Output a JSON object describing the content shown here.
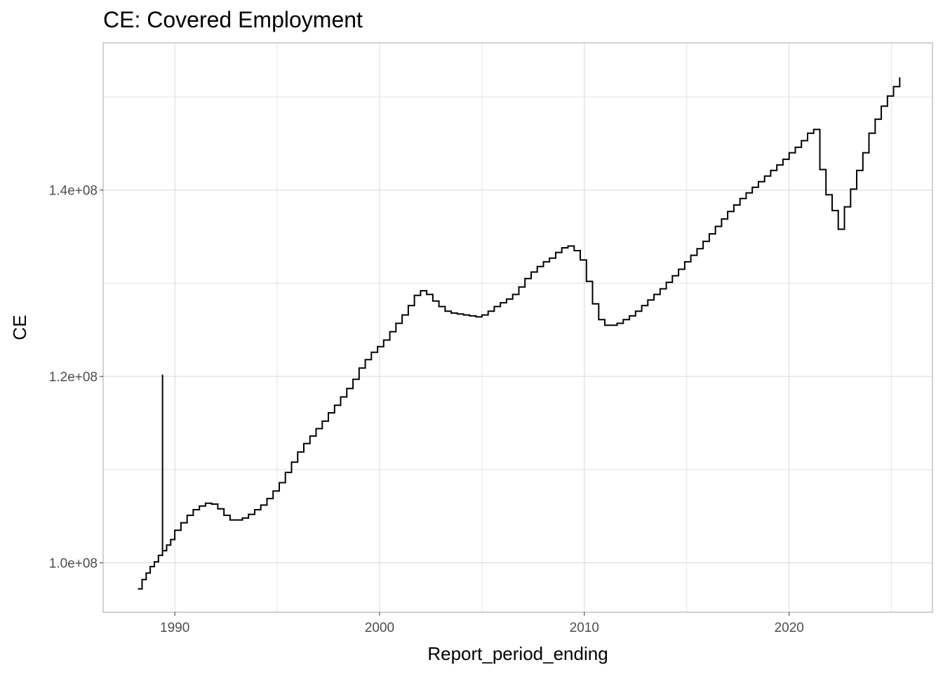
{
  "chart_data": {
    "type": "line",
    "title": "CE: Covered Employment",
    "xlabel": "Report_period_ending",
    "ylabel": "CE",
    "xlim": [
      1986.5,
      2027.0
    ],
    "ylim": [
      94700000,
      155800000
    ],
    "x_ticks": [
      {
        "value": 1990,
        "label": "1990"
      },
      {
        "value": 2000,
        "label": "2000"
      },
      {
        "value": 2010,
        "label": "2010"
      },
      {
        "value": 2020,
        "label": "2020"
      }
    ],
    "y_ticks": [
      {
        "value": 100000000,
        "label": "1.0e+08"
      },
      {
        "value": 120000000,
        "label": "1.2e+08"
      },
      {
        "value": 140000000,
        "label": "1.4e+08"
      }
    ],
    "grid": true,
    "step": true,
    "colors": {
      "line": "#000000",
      "grid": "#dedede",
      "panel_border": "#b3b3b3",
      "background": "#ffffff"
    },
    "series": [
      {
        "x": [
          1988.2,
          1988.4,
          1988.6,
          1988.8,
          1989.0,
          1989.2,
          1989.4,
          1989.6,
          1989.8,
          1990.0,
          1990.3,
          1990.6,
          1990.9,
          1991.2,
          1991.5,
          1991.8,
          1992.1,
          1992.4,
          1992.7,
          1993.0,
          1993.3,
          1993.6,
          1993.9,
          1994.2,
          1994.5,
          1994.8,
          1995.1,
          1995.4,
          1995.7,
          1996.0,
          1996.3,
          1996.6,
          1996.9,
          1997.2,
          1997.5,
          1997.8,
          1998.1,
          1998.4,
          1998.7,
          1999.0,
          1999.3,
          1999.6,
          1999.9,
          2000.2,
          2000.5,
          2000.8,
          2001.1,
          2001.4,
          2001.7,
          2002.0,
          2002.3,
          2002.6,
          2002.9,
          2003.2,
          2003.5,
          2003.8,
          2004.1,
          2004.4,
          2004.7,
          2005.0,
          2005.3,
          2005.6,
          2005.9,
          2006.2,
          2006.5,
          2006.8,
          2007.1,
          2007.4,
          2007.7,
          2008.0,
          2008.3,
          2008.6,
          2008.9,
          2009.2,
          2009.5,
          2009.8,
          2010.1,
          2010.4,
          2010.7,
          2011.0,
          2011.3,
          2011.6,
          2011.9,
          2012.2,
          2012.5,
          2012.8,
          2013.1,
          2013.4,
          2013.7,
          2014.0,
          2014.3,
          2014.6,
          2014.9,
          2015.2,
          2015.5,
          2015.8,
          2016.1,
          2016.4,
          2016.7,
          2017.0,
          2017.3,
          2017.6,
          2017.9,
          2018.2,
          2018.5,
          2018.8,
          2019.1,
          2019.4,
          2019.7,
          2020.0,
          2020.3,
          2020.6,
          2020.9,
          2021.2,
          2021.5,
          2021.8,
          2022.1,
          2022.4,
          2022.7,
          2023.0,
          2023.3,
          2023.6,
          2023.9,
          2024.2,
          2024.5,
          2024.8,
          2025.1,
          2025.4
        ],
        "y": [
          97200000,
          98200000,
          98900000,
          99600000,
          100100000,
          100800000,
          101300000,
          101900000,
          102500000,
          103500000,
          104300000,
          105100000,
          105700000,
          106100000,
          106400000,
          106300000,
          105800000,
          105100000,
          104600000,
          104600000,
          104800000,
          105200000,
          105700000,
          106200000,
          106900000,
          107700000,
          108600000,
          109700000,
          110800000,
          111900000,
          112800000,
          113600000,
          114400000,
          115200000,
          116100000,
          116900000,
          117800000,
          118700000,
          119700000,
          120900000,
          121800000,
          122600000,
          123200000,
          123900000,
          124800000,
          125700000,
          126600000,
          127600000,
          128700000,
          129200000,
          128800000,
          128100000,
          127500000,
          127000000,
          126800000,
          126700000,
          126600000,
          126500000,
          126400000,
          126600000,
          127000000,
          127500000,
          127900000,
          128300000,
          128800000,
          129600000,
          130500000,
          131200000,
          131800000,
          132300000,
          132700000,
          133300000,
          133800000,
          134000000,
          133500000,
          132500000,
          130200000,
          127800000,
          126100000,
          125500000,
          125500000,
          125700000,
          126100000,
          126500000,
          127000000,
          127600000,
          128200000,
          128800000,
          129400000,
          130100000,
          130800000,
          131500000,
          132300000,
          133000000,
          133700000,
          134500000,
          135300000,
          136100000,
          136900000,
          137700000,
          138400000,
          139100000,
          139700000,
          140300000,
          140900000,
          141500000,
          142100000,
          142700000,
          143300000,
          144000000,
          144600000,
          145300000,
          146100000,
          146500000,
          142200000,
          139500000,
          137800000,
          135800000,
          138200000,
          140100000,
          142100000,
          144000000,
          146100000,
          147600000,
          149000000,
          150100000,
          151100000,
          152100000
        ],
        "spike": {
          "x": 1989.4,
          "y": 120200000
        }
      }
    ]
  }
}
